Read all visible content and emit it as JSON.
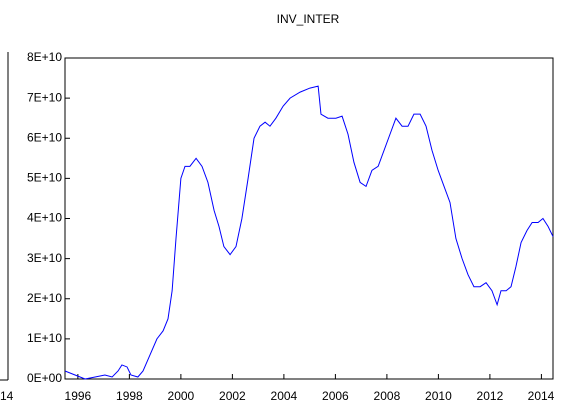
{
  "fragment": {
    "label": "14"
  },
  "chart_data": {
    "type": "line",
    "title": "INV_INTER",
    "xlim": [
      1995.5,
      2014.45
    ],
    "xticks": [
      1996,
      1998,
      2000,
      2002,
      2004,
      2006,
      2008,
      2010,
      2012,
      2014
    ],
    "ylim": [
      0,
      80000000000.0
    ],
    "yticks": [
      {
        "value": 0,
        "label": "0E+00"
      },
      {
        "value": 10000000000.0,
        "label": "1E+10"
      },
      {
        "value": 20000000000.0,
        "label": "2E+10"
      },
      {
        "value": 30000000000.0,
        "label": "3E+10"
      },
      {
        "value": 40000000000.0,
        "label": "4E+10"
      },
      {
        "value": 50000000000.0,
        "label": "5E+10"
      },
      {
        "value": 60000000000.0,
        "label": "6E+10"
      },
      {
        "value": 70000000000.0,
        "label": "7E+10"
      },
      {
        "value": 80000000000.0,
        "label": "8E+10"
      }
    ],
    "grid": false,
    "x": [
      1995.5,
      1995.89,
      1996.28,
      1996.67,
      1997.05,
      1997.33,
      1997.56,
      1997.71,
      1997.91,
      1998.06,
      1998.33,
      1998.53,
      1998.8,
      1999.07,
      1999.31,
      1999.5,
      1999.66,
      1999.81,
      2000.0,
      2000.16,
      2000.35,
      2000.59,
      2000.82,
      2001.05,
      2001.29,
      2001.48,
      2001.67,
      2001.91,
      2002.14,
      2002.37,
      2002.61,
      2002.84,
      2003.07,
      2003.27,
      2003.46,
      2003.69,
      2003.97,
      2004.24,
      2004.63,
      2005.01,
      2005.33,
      2005.44,
      2005.71,
      2006.02,
      2006.26,
      2006.49,
      2006.72,
      2006.96,
      2007.19,
      2007.42,
      2007.66,
      2007.89,
      2008.12,
      2008.35,
      2008.59,
      2008.82,
      2009.05,
      2009.29,
      2009.52,
      2009.75,
      2009.99,
      2010.22,
      2010.45,
      2010.68,
      2010.92,
      2011.15,
      2011.38,
      2011.62,
      2011.85,
      2012.08,
      2012.28,
      2012.43,
      2012.63,
      2012.82,
      2013.01,
      2013.21,
      2013.44,
      2013.64,
      2013.87,
      2014.06,
      2014.26,
      2014.45
    ],
    "series": [
      {
        "name": "INV_INTER",
        "color": "#0000ff",
        "values": [
          2000000000.0,
          1000000000.0,
          0,
          500000000.0,
          1000000000.0,
          500000000.0,
          2000000000.0,
          3500000000.0,
          3000000000.0,
          1000000000.0,
          500000000.0,
          2000000000.0,
          6000000000.0,
          10000000000.0,
          12000000000.0,
          15000000000.0,
          22000000000.0,
          35000000000.0,
          50000000000.0,
          53000000000.0,
          53000000000.0,
          55000000000.0,
          53000000000.0,
          49000000000.0,
          42000000000.0,
          38000000000.0,
          33000000000.0,
          31000000000.0,
          33000000000.0,
          40000000000.0,
          50000000000.0,
          60000000000.0,
          63000000000.0,
          64000000000.0,
          63000000000.0,
          65000000000.0,
          68000000000.0,
          70000000000.0,
          71500000000.0,
          72500000000.0,
          73000000000.0,
          66000000000.0,
          65000000000.0,
          65000000000.0,
          65500000000.0,
          61000000000.0,
          54000000000.0,
          49000000000.0,
          48000000000.0,
          52000000000.0,
          53000000000.0,
          57000000000.0,
          61000000000.0,
          65000000000.0,
          63000000000.0,
          63000000000.0,
          66000000000.0,
          66000000000.0,
          63000000000.0,
          57000000000.0,
          52000000000.0,
          48000000000.0,
          44000000000.0,
          35000000000.0,
          30000000000.0,
          26000000000.0,
          23000000000.0,
          23000000000.0,
          24000000000.0,
          22000000000.0,
          18500000000.0,
          22000000000.0,
          22000000000.0,
          23000000000.0,
          28000000000.0,
          34000000000.0,
          37000000000.0,
          39000000000.0,
          39000000000.0,
          40000000000.0,
          38000000000.0,
          35500000000.0
        ]
      }
    ]
  }
}
